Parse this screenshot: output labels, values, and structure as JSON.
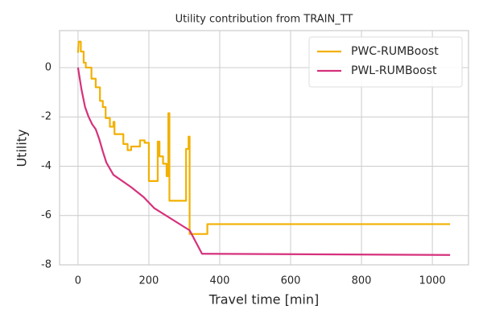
{
  "chart_data": {
    "type": "line",
    "title": "Utility contribution from TRAIN_TT",
    "xlabel": "Travel time [min]",
    "ylabel": "Utility",
    "xlim": [
      -52,
      1102
    ],
    "ylim": [
      -8,
      1.5
    ],
    "xticks": [
      0,
      200,
      400,
      600,
      800,
      1000
    ],
    "yticks": [
      -8,
      -6,
      -4,
      -2,
      0
    ],
    "grid": true,
    "legend": "upper-right",
    "series": [
      {
        "name": "PWC-RUMBoost",
        "color": "#f2b000",
        "x": [
          0,
          2,
          8,
          8,
          16,
          16,
          22,
          22,
          38,
          38,
          50,
          50,
          62,
          62,
          70,
          70,
          78,
          78,
          90,
          90,
          100,
          100,
          103,
          103,
          128,
          128,
          140,
          140,
          150,
          150,
          175,
          175,
          188,
          188,
          200,
          200,
          225,
          225,
          230,
          230,
          240,
          240,
          250,
          250,
          255,
          255,
          258,
          258,
          305,
          305,
          312,
          312,
          315,
          315,
          365,
          365,
          1050
        ],
        "values": [
          0.6,
          1.05,
          1.05,
          0.65,
          0.65,
          0.2,
          0.2,
          0,
          0,
          -0.45,
          -0.45,
          -0.8,
          -0.8,
          -1.35,
          -1.35,
          -1.6,
          -1.6,
          -2.05,
          -2.05,
          -2.4,
          -2.4,
          -2.2,
          -2.2,
          -2.7,
          -2.7,
          -3.1,
          -3.1,
          -3.35,
          -3.35,
          -3.2,
          -3.2,
          -2.95,
          -2.95,
          -3.05,
          -3.05,
          -4.6,
          -4.6,
          -3.0,
          -3.0,
          -3.6,
          -3.6,
          -3.9,
          -3.9,
          -4.4,
          -4.4,
          -1.85,
          -1.85,
          -5.4,
          -5.4,
          -3.3,
          -3.3,
          -2.8,
          -2.8,
          -6.75,
          -6.75,
          -6.35,
          -6.35
        ]
      },
      {
        "name": "PWL-RUMBoost",
        "color": "#d6317c",
        "x": [
          0,
          10,
          20,
          30,
          40,
          50,
          60,
          70,
          80,
          100,
          150,
          185,
          215,
          315,
          350,
          1050
        ],
        "values": [
          0,
          -0.9,
          -1.6,
          -2.0,
          -2.3,
          -2.5,
          -2.9,
          -3.4,
          -3.85,
          -4.35,
          -4.85,
          -5.25,
          -5.7,
          -6.6,
          -7.55,
          -7.6
        ]
      }
    ]
  }
}
